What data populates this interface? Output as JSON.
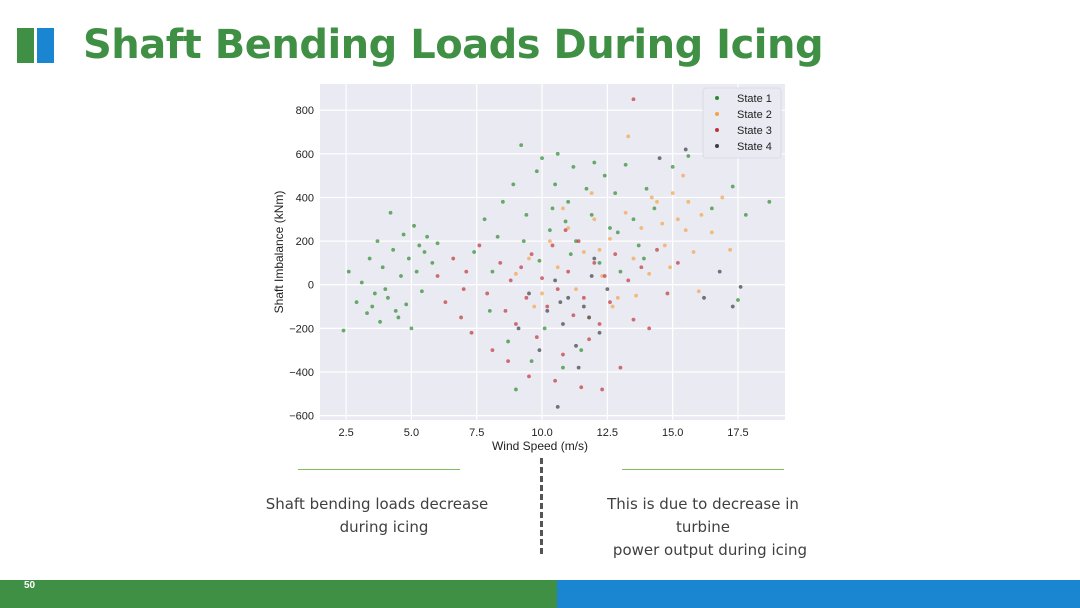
{
  "title": "Shaft Bending Loads During Icing",
  "slide_number": "50",
  "colors": {
    "brand_green": "#3f8f44",
    "brand_blue": "#1a85d1",
    "plot_bg": "#eaeaf2"
  },
  "captions": {
    "left": [
      "Shaft bending loads decrease",
      "during icing"
    ],
    "right": [
      "This is due to decrease in turbine",
      "power output during icing"
    ]
  },
  "chart_data": {
    "type": "scatter",
    "title": "",
    "xlabel": "Wind Speed (m/s)",
    "ylabel": "Shaft Imbalance (kNm)",
    "xlim": [
      1.5,
      19.3
    ],
    "ylim": [
      -620,
      920
    ],
    "xticks": [
      2.5,
      5.0,
      7.5,
      10.0,
      12.5,
      15.0,
      17.5
    ],
    "yticks": [
      -600,
      -400,
      -200,
      0,
      200,
      400,
      600,
      800
    ],
    "grid": true,
    "legend_position": "top-right",
    "series": [
      {
        "name": "State 1",
        "color": "#2e8b2e",
        "points": [
          [
            2.4,
            -210
          ],
          [
            2.6,
            60
          ],
          [
            2.9,
            -80
          ],
          [
            3.1,
            10
          ],
          [
            3.3,
            -130
          ],
          [
            3.4,
            120
          ],
          [
            3.6,
            -40
          ],
          [
            3.7,
            200
          ],
          [
            3.8,
            -170
          ],
          [
            3.9,
            80
          ],
          [
            4.1,
            -60
          ],
          [
            4.2,
            330
          ],
          [
            4.3,
            160
          ],
          [
            4.4,
            -120
          ],
          [
            4.6,
            40
          ],
          [
            4.7,
            230
          ],
          [
            4.8,
            -90
          ],
          [
            4.9,
            120
          ],
          [
            5.0,
            -200
          ],
          [
            5.1,
            270
          ],
          [
            5.2,
            60
          ],
          [
            5.3,
            180
          ],
          [
            5.4,
            -30
          ],
          [
            5.6,
            220
          ],
          [
            5.8,
            100
          ],
          [
            6.0,
            190
          ],
          [
            3.5,
            -100
          ],
          [
            4.0,
            -20
          ],
          [
            4.5,
            -150
          ],
          [
            5.5,
            150
          ],
          [
            7.4,
            150
          ],
          [
            7.8,
            300
          ],
          [
            8.0,
            -120
          ],
          [
            8.3,
            220
          ],
          [
            8.5,
            380
          ],
          [
            8.7,
            -260
          ],
          [
            8.9,
            460
          ],
          [
            9.0,
            -480
          ],
          [
            9.2,
            640
          ],
          [
            9.4,
            320
          ],
          [
            9.6,
            -350
          ],
          [
            9.8,
            520
          ],
          [
            10.0,
            580
          ],
          [
            10.1,
            -200
          ],
          [
            10.3,
            250
          ],
          [
            10.5,
            460
          ],
          [
            10.6,
            600
          ],
          [
            10.8,
            -380
          ],
          [
            11.0,
            380
          ],
          [
            11.2,
            540
          ],
          [
            11.3,
            200
          ],
          [
            11.5,
            -300
          ],
          [
            11.7,
            440
          ],
          [
            11.9,
            320
          ],
          [
            12.0,
            560
          ],
          [
            12.2,
            100
          ],
          [
            12.4,
            500
          ],
          [
            12.6,
            260
          ],
          [
            12.8,
            420
          ],
          [
            13.0,
            60
          ],
          [
            13.2,
            550
          ],
          [
            13.5,
            300
          ],
          [
            13.7,
            180
          ],
          [
            14.0,
            440
          ],
          [
            14.3,
            350
          ],
          [
            15.0,
            540
          ],
          [
            15.6,
            590
          ],
          [
            16.5,
            350
          ],
          [
            17.3,
            450
          ],
          [
            17.8,
            320
          ],
          [
            18.7,
            380
          ],
          [
            17.5,
            -70
          ],
          [
            10.4,
            350
          ],
          [
            11.1,
            140
          ],
          [
            9.3,
            200
          ],
          [
            12.9,
            240
          ],
          [
            8.1,
            60
          ],
          [
            13.9,
            120
          ],
          [
            10.9,
            290
          ],
          [
            9.9,
            110
          ]
        ]
      },
      {
        "name": "State 2",
        "color": "#f5a34a",
        "points": [
          [
            9.0,
            50
          ],
          [
            9.5,
            120
          ],
          [
            10.0,
            -40
          ],
          [
            10.3,
            200
          ],
          [
            10.6,
            80
          ],
          [
            11.0,
            260
          ],
          [
            11.3,
            -20
          ],
          [
            11.6,
            150
          ],
          [
            12.0,
            300
          ],
          [
            12.3,
            40
          ],
          [
            12.6,
            210
          ],
          [
            12.9,
            -60
          ],
          [
            13.2,
            330
          ],
          [
            13.5,
            120
          ],
          [
            13.8,
            260
          ],
          [
            14.1,
            50
          ],
          [
            14.4,
            380
          ],
          [
            14.7,
            180
          ],
          [
            15.0,
            420
          ],
          [
            15.2,
            300
          ],
          [
            15.5,
            250
          ],
          [
            15.8,
            150
          ],
          [
            16.1,
            320
          ],
          [
            16.5,
            240
          ],
          [
            16.9,
            400
          ],
          [
            17.2,
            160
          ],
          [
            13.3,
            680
          ],
          [
            14.2,
            400
          ],
          [
            15.4,
            500
          ],
          [
            11.8,
            -150
          ],
          [
            12.7,
            -100
          ],
          [
            13.6,
            -50
          ],
          [
            10.8,
            350
          ],
          [
            11.9,
            420
          ],
          [
            12.2,
            160
          ],
          [
            9.7,
            -100
          ],
          [
            14.9,
            80
          ],
          [
            16.0,
            -30
          ],
          [
            15.6,
            380
          ],
          [
            14.6,
            280
          ]
        ]
      },
      {
        "name": "State 3",
        "color": "#c0353a",
        "points": [
          [
            6.0,
            40
          ],
          [
            6.3,
            -80
          ],
          [
            6.6,
            120
          ],
          [
            6.9,
            -150
          ],
          [
            7.1,
            60
          ],
          [
            7.3,
            -220
          ],
          [
            7.6,
            180
          ],
          [
            7.9,
            -40
          ],
          [
            8.1,
            -300
          ],
          [
            8.4,
            100
          ],
          [
            8.6,
            -120
          ],
          [
            8.8,
            20
          ],
          [
            9.0,
            -180
          ],
          [
            9.2,
            80
          ],
          [
            9.4,
            -60
          ],
          [
            9.6,
            140
          ],
          [
            9.8,
            -240
          ],
          [
            10.0,
            30
          ],
          [
            10.2,
            -100
          ],
          [
            10.4,
            180
          ],
          [
            10.6,
            -20
          ],
          [
            10.8,
            -320
          ],
          [
            11.0,
            60
          ],
          [
            11.2,
            -140
          ],
          [
            11.4,
            200
          ],
          [
            11.6,
            -60
          ],
          [
            11.8,
            -250
          ],
          [
            12.0,
            100
          ],
          [
            12.2,
            -180
          ],
          [
            12.4,
            40
          ],
          [
            12.6,
            -80
          ],
          [
            12.8,
            140
          ],
          [
            13.0,
            -380
          ],
          [
            13.3,
            20
          ],
          [
            13.5,
            -160
          ],
          [
            13.5,
            850
          ],
          [
            13.8,
            80
          ],
          [
            14.1,
            -200
          ],
          [
            14.4,
            160
          ],
          [
            14.8,
            -40
          ],
          [
            15.2,
            100
          ],
          [
            10.5,
            -440
          ],
          [
            11.5,
            -470
          ],
          [
            12.3,
            -480
          ],
          [
            8.7,
            -350
          ],
          [
            9.5,
            -420
          ],
          [
            7.0,
            -20
          ],
          [
            10.9,
            250
          ]
        ]
      },
      {
        "name": "State 4",
        "color": "#3a3f44",
        "points": [
          [
            9.1,
            -200
          ],
          [
            9.5,
            -40
          ],
          [
            9.9,
            -300
          ],
          [
            10.2,
            -120
          ],
          [
            10.5,
            20
          ],
          [
            10.8,
            -180
          ],
          [
            11.0,
            -60
          ],
          [
            11.3,
            -280
          ],
          [
            11.6,
            -100
          ],
          [
            11.9,
            40
          ],
          [
            12.2,
            -220
          ],
          [
            12.5,
            -20
          ],
          [
            10.6,
            -560
          ],
          [
            11.4,
            -380
          ],
          [
            15.5,
            620
          ],
          [
            16.5,
            680
          ],
          [
            16.2,
            -60
          ],
          [
            17.3,
            -100
          ],
          [
            17.6,
            -10
          ],
          [
            16.8,
            60
          ],
          [
            14.5,
            580
          ],
          [
            10.7,
            -80
          ],
          [
            11.8,
            -150
          ],
          [
            12.0,
            120
          ]
        ]
      }
    ]
  }
}
